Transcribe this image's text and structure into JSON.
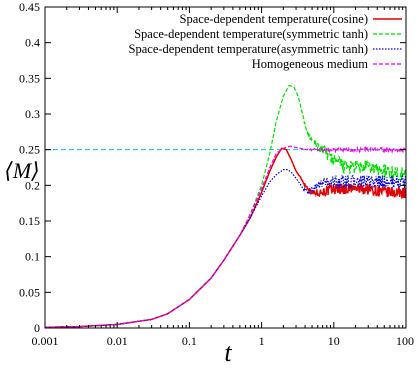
{
  "chart_data": {
    "type": "line",
    "xscale": "log",
    "xlim": [
      0.001,
      100
    ],
    "ylim": [
      0,
      0.45
    ],
    "xlabel": "t",
    "ylabel": "⟨M⟩",
    "xticks": [
      0.001,
      0.01,
      0.1,
      1,
      10,
      100
    ],
    "xtick_labels": [
      "0.001",
      "0.01",
      "0.1",
      "1",
      "10",
      "100"
    ],
    "yticks": [
      0,
      0.05,
      0.1,
      0.15,
      0.2,
      0.25,
      0.3,
      0.35,
      0.4,
      0.45
    ],
    "ytick_labels": [
      "0",
      "0.05",
      "0.1",
      "0.15",
      "0.2",
      "0.25",
      "0.3",
      "0.35",
      "0.4",
      "0.45"
    ],
    "legend_position": "top-right",
    "reference_line": {
      "y": 0.25,
      "color": "#00c8d8",
      "style": "dashed"
    },
    "grid": false,
    "series": [
      {
        "name": "Space-dependent temperature(cosine)",
        "color": "#e00000",
        "style": "solid",
        "x": [
          0.001,
          0.003,
          0.01,
          0.03,
          0.05,
          0.1,
          0.2,
          0.3,
          0.5,
          0.7,
          1,
          1.3,
          1.6,
          1.9,
          2.2,
          2.6,
          3,
          3.5,
          4,
          4.5,
          5,
          6,
          8,
          10,
          15,
          20,
          30,
          50,
          100
        ],
        "values": [
          0.001,
          0.002,
          0.005,
          0.012,
          0.02,
          0.04,
          0.07,
          0.095,
          0.13,
          0.155,
          0.19,
          0.22,
          0.24,
          0.252,
          0.25,
          0.235,
          0.22,
          0.21,
          0.2,
          0.195,
          0.19,
          0.19,
          0.192,
          0.195,
          0.195,
          0.195,
          0.195,
          0.19,
          0.19
        ],
        "noise": 0.008
      },
      {
        "name": "Space-dependent temperature(symmetric tanh)",
        "color": "#00dd00",
        "style": "dashed",
        "x": [
          0.001,
          0.003,
          0.01,
          0.03,
          0.05,
          0.1,
          0.2,
          0.3,
          0.5,
          0.7,
          1,
          1.3,
          1.6,
          2,
          2.4,
          2.8,
          3.2,
          3.6,
          4,
          4.5,
          5,
          6,
          8,
          10,
          15,
          20,
          30,
          50,
          100
        ],
        "values": [
          0.001,
          0.002,
          0.005,
          0.012,
          0.02,
          0.04,
          0.07,
          0.095,
          0.13,
          0.16,
          0.2,
          0.245,
          0.29,
          0.325,
          0.34,
          0.338,
          0.325,
          0.305,
          0.285,
          0.27,
          0.262,
          0.255,
          0.245,
          0.235,
          0.225,
          0.225,
          0.225,
          0.22,
          0.215
        ],
        "noise": 0.01
      },
      {
        "name": "Space-dependent temperature(asymmetric tanh)",
        "color": "#0000dd",
        "style": "dotted",
        "x": [
          0.001,
          0.003,
          0.01,
          0.03,
          0.05,
          0.1,
          0.2,
          0.3,
          0.5,
          0.7,
          1,
          1.3,
          1.6,
          2,
          2.3,
          2.6,
          3,
          3.5,
          4,
          4.5,
          5,
          6,
          8,
          10,
          15,
          20,
          30,
          50,
          100
        ],
        "values": [
          0.001,
          0.002,
          0.005,
          0.012,
          0.02,
          0.04,
          0.07,
          0.095,
          0.13,
          0.155,
          0.185,
          0.205,
          0.215,
          0.222,
          0.222,
          0.218,
          0.21,
          0.2,
          0.192,
          0.19,
          0.195,
          0.2,
          0.205,
          0.205,
          0.205,
          0.205,
          0.205,
          0.205,
          0.205
        ],
        "noise": 0.009
      },
      {
        "name": "Homogeneous medium",
        "color": "#ee00ee",
        "style": "dashed",
        "x": [
          0.001,
          0.003,
          0.01,
          0.03,
          0.05,
          0.1,
          0.2,
          0.3,
          0.5,
          0.7,
          1,
          1.3,
          1.6,
          2,
          2.5,
          3,
          4,
          5,
          6,
          8,
          10,
          15,
          20,
          30,
          50,
          100
        ],
        "values": [
          0.001,
          0.002,
          0.005,
          0.012,
          0.02,
          0.04,
          0.07,
          0.095,
          0.13,
          0.16,
          0.195,
          0.225,
          0.245,
          0.252,
          0.255,
          0.253,
          0.25,
          0.25,
          0.25,
          0.25,
          0.25,
          0.25,
          0.25,
          0.25,
          0.25,
          0.25
        ],
        "noise": 0.003
      }
    ]
  }
}
